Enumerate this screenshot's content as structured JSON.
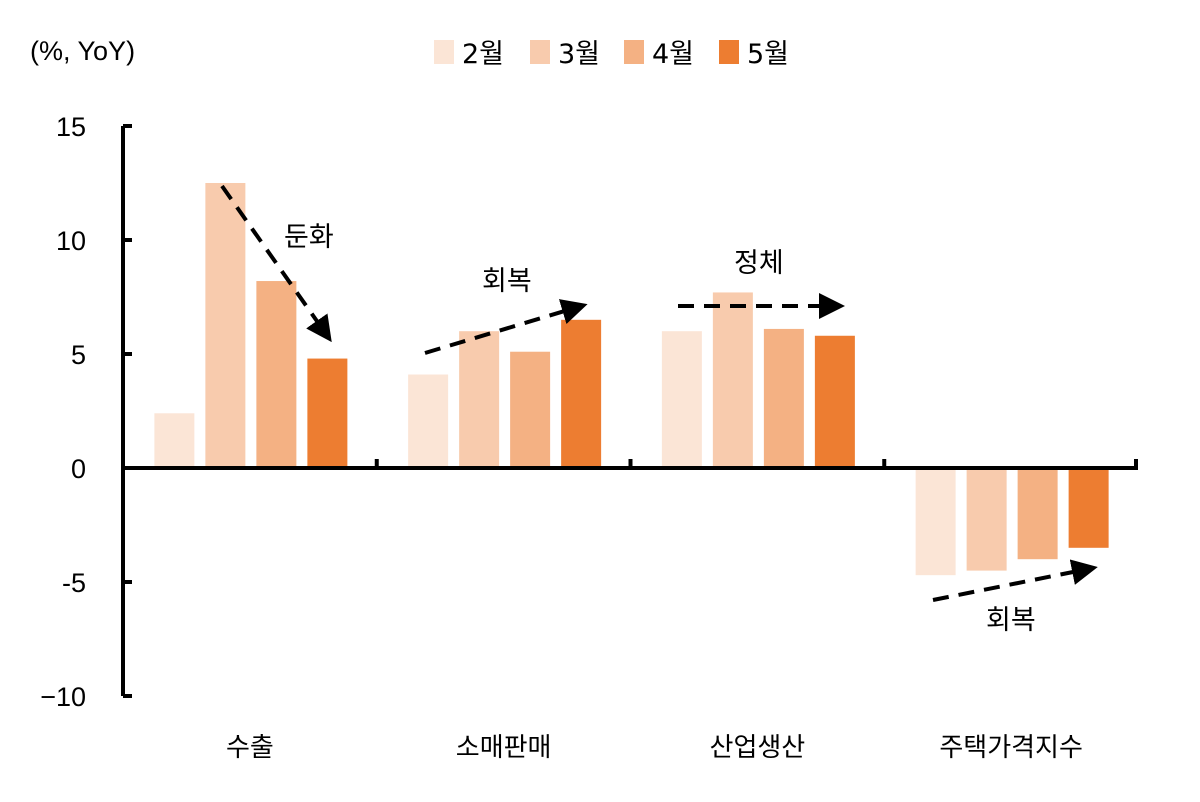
{
  "chart_data": {
    "type": "bar",
    "title": "",
    "unit_label": "(%, YoY)",
    "ylim": [
      -10,
      15
    ],
    "y_ticks": [
      15,
      10,
      5,
      0,
      -5,
      -10
    ],
    "y_tick_labels": [
      "15",
      "10",
      "5",
      "0",
      "-5",
      "−10"
    ],
    "categories": [
      "수출",
      "소매판매",
      "산업생산",
      "주택가격지수"
    ],
    "series": [
      {
        "name": "2월",
        "color": "#fbe5d6",
        "values": [
          2.4,
          4.1,
          6.0,
          -4.7
        ]
      },
      {
        "name": "3월",
        "color": "#f8cbad",
        "values": [
          12.5,
          6.0,
          7.7,
          -4.5
        ]
      },
      {
        "name": "4월",
        "color": "#f4b183",
        "values": [
          8.2,
          5.1,
          6.1,
          -4.0
        ]
      },
      {
        "name": "5월",
        "color": "#ed7d31",
        "values": [
          4.8,
          6.5,
          5.8,
          -3.5
        ]
      }
    ],
    "legend_position": "top-center",
    "grid": false,
    "annotations": [
      {
        "text": "둔화",
        "category": "수출"
      },
      {
        "text": "회복",
        "category": "소매판매"
      },
      {
        "text": "정체",
        "category": "산업생산"
      },
      {
        "text": "회복",
        "category": "주택가격지수"
      }
    ]
  }
}
